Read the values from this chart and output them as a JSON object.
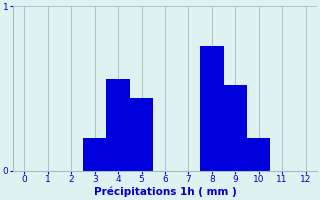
{
  "categories": [
    0,
    1,
    2,
    3,
    4,
    5,
    6,
    7,
    8,
    9,
    10,
    11,
    12
  ],
  "values": [
    0,
    0,
    0,
    0.2,
    0.56,
    0.44,
    0,
    0,
    0.76,
    0.52,
    0.2,
    0,
    0
  ],
  "bar_color": "#0000dd",
  "background_color": "#dff2f2",
  "grid_color": "#a0bebe",
  "xlabel": "Précipitations 1h ( mm )",
  "xlabel_color": "#0000cc",
  "tick_color": "#0000cc",
  "ylim": [
    0,
    1.0
  ],
  "xlim": [
    -0.5,
    12.5
  ],
  "yticks": [
    0,
    1
  ],
  "xticks": [
    0,
    1,
    2,
    3,
    4,
    5,
    6,
    7,
    8,
    9,
    10,
    11,
    12
  ],
  "bar_width": 1.0
}
